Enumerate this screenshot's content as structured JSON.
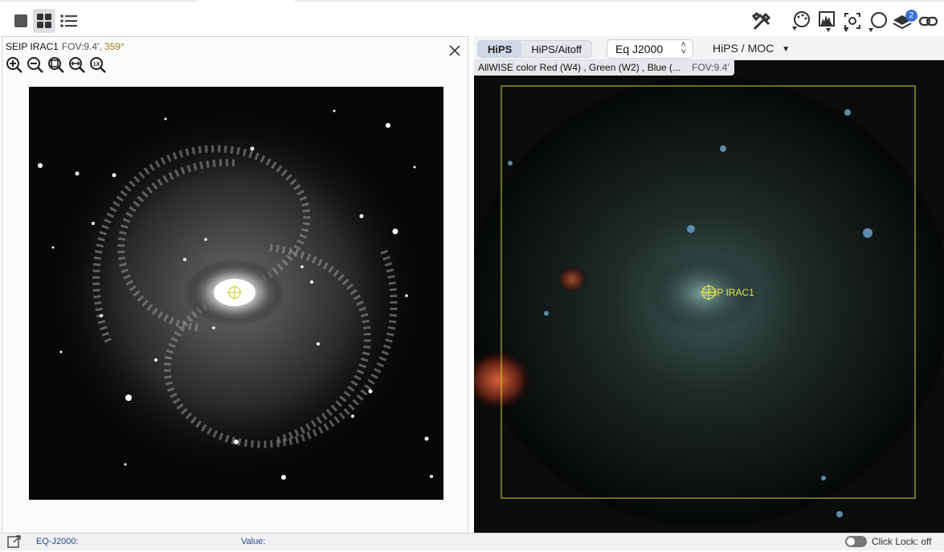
{
  "toolbar": {
    "layout_buttons": [
      {
        "icon": "single-view-icon",
        "active": false
      },
      {
        "icon": "grid-view-icon",
        "active": true
      },
      {
        "icon": "list-view-icon",
        "active": false
      }
    ],
    "tools": [
      "tools-icon",
      "color-palette-icon",
      "stretch-histogram-icon",
      "recenter-icon",
      "selection-lasso-icon",
      "layers-icon",
      "link-icon"
    ],
    "layers_badge": "2"
  },
  "left_view": {
    "title": "SEIP IRAC1",
    "fov": "FOV:9.4',",
    "rotation": "359°",
    "zoom_buttons": [
      "zoom-in-icon",
      "zoom-out-icon",
      "zoom-fit-icon",
      "zoom-fill-icon",
      "zoom-1x-icon"
    ],
    "zoom_1x_label": "1X"
  },
  "right_view": {
    "tabs": [
      {
        "label": "HiPS",
        "active": true
      },
      {
        "label": "HiPS/Aitoff",
        "active": false
      }
    ],
    "coord_system": "Eq J2000",
    "hips_moc_label": "HiPS / MOC",
    "info": "AllWISE color Red (W4) , Green (W2) , Blue (...",
    "fov": "FOV:9.4'",
    "footprint_label": "SEIP IRAC1",
    "footprint_color": "#e8e04a"
  },
  "status_bar": {
    "coord_label": "EQ-J2000:",
    "value_label": "Value:",
    "click_lock": "Click Lock: off"
  }
}
